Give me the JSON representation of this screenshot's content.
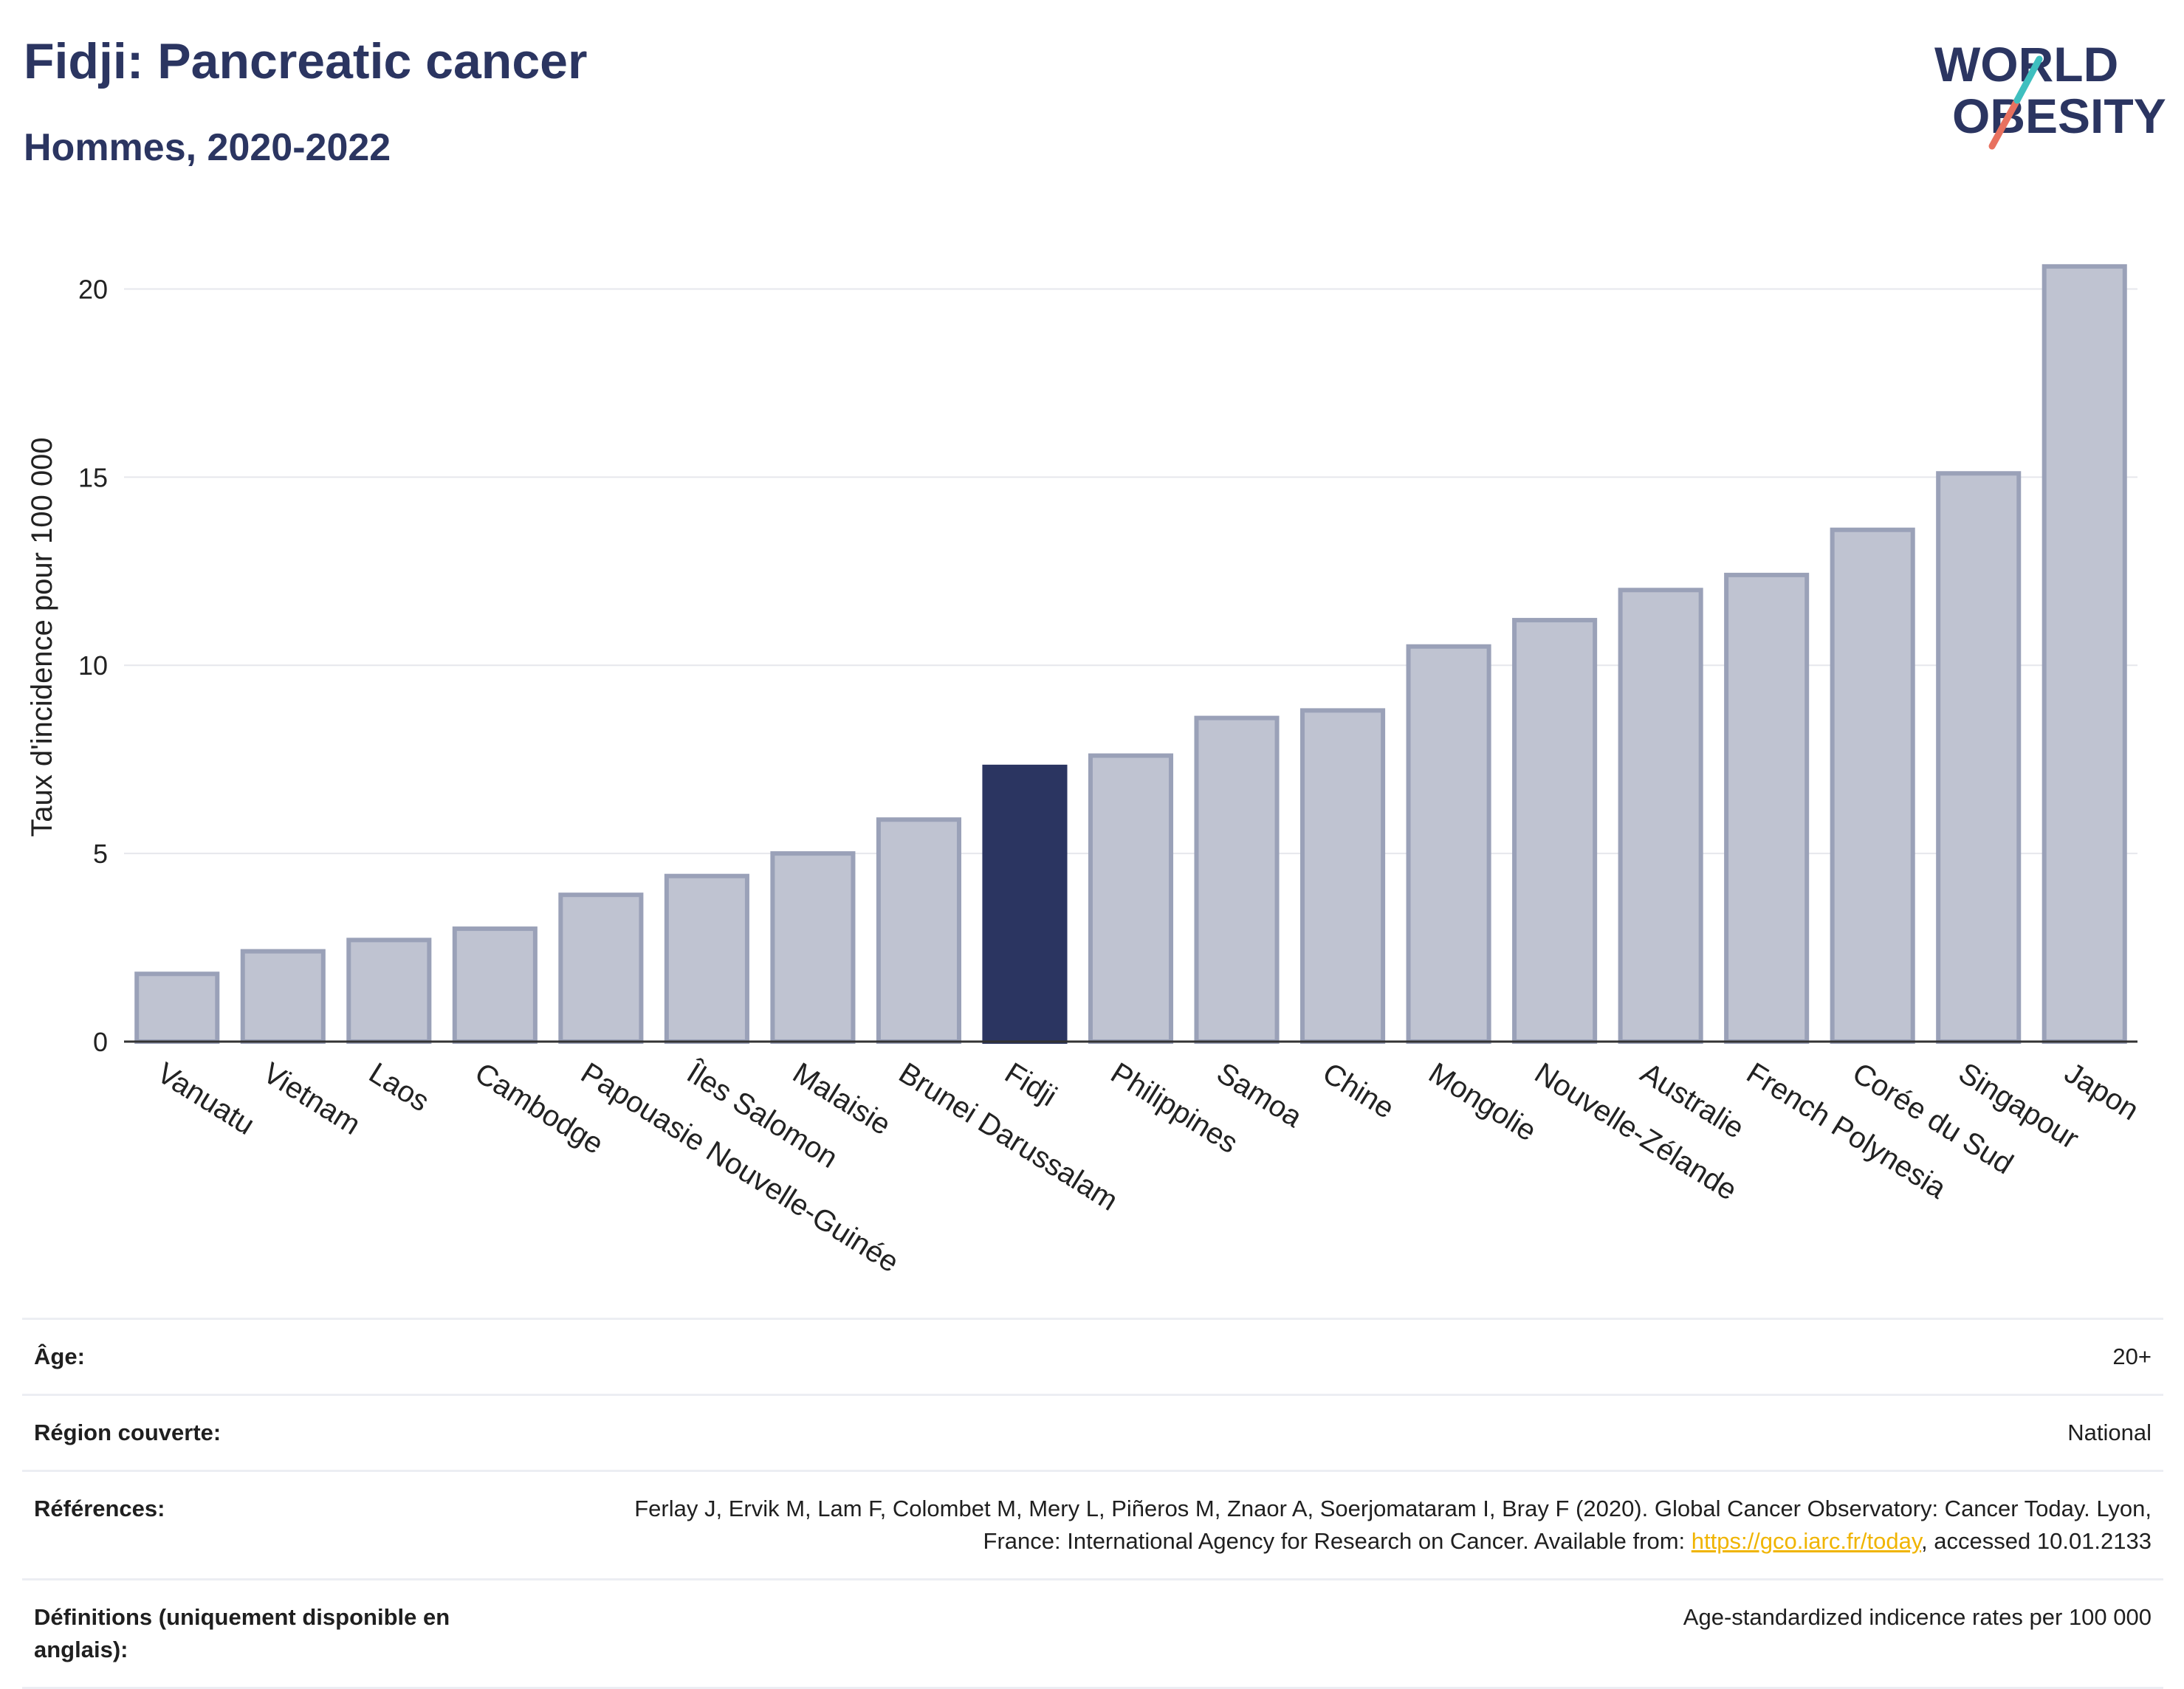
{
  "header": {
    "title": "Fidji: Pancreatic cancer",
    "subtitle": "Hommes, 2020-2022",
    "logo_line1": "WORLD",
    "logo_line2": "OBESITY"
  },
  "colors": {
    "bar": "#bfc3d1",
    "bar_stroke": "#9aa1b8",
    "highlight": "#2b3561",
    "text_dark": "#2b3561",
    "grid": "#e6e7ec",
    "link": "#f0b400"
  },
  "chart_data": {
    "type": "bar",
    "ylabel": "Taux d'incidence pour 100 000",
    "xlabel": "",
    "ylim": [
      0,
      21.5
    ],
    "yticks": [
      0,
      5,
      10,
      15,
      20
    ],
    "highlight": "Fidji",
    "categories": [
      "Vanuatu",
      "Vietnam",
      "Laos",
      "Cambodge",
      "Papouasie Nouvelle-Guinée",
      "Îles Salomon",
      "Malaisie",
      "Brunei Darussalam",
      "Fidji",
      "Philippines",
      "Samoa",
      "Chine",
      "Mongolie",
      "Nouvelle-Zélande",
      "Australie",
      "French Polynesia",
      "Corée du Sud",
      "Singapour",
      "Japon"
    ],
    "values": [
      1.8,
      2.4,
      2.7,
      3.0,
      3.9,
      4.4,
      5.0,
      5.9,
      7.3,
      7.6,
      8.6,
      8.8,
      10.5,
      11.2,
      12.0,
      12.4,
      13.6,
      15.1,
      20.6
    ]
  },
  "info": {
    "age_label": "Âge:",
    "age_value": "20+",
    "region_label": "Région couverte:",
    "region_value": "National",
    "refs_label": "Références:",
    "refs_text": "Ferlay J, Ervik M, Lam F, Colombet M, Mery L, Piñeros M, Znaor A, Soerjomataram I, Bray F (2020). Global Cancer Observatory: Cancer Today. Lyon, France: International Agency for Research on Cancer. Available from: ",
    "refs_link": "https://gco.iarc.fr/today",
    "refs_suffix": ", accessed 10.01.2133",
    "defs_label": "Définitions (uniquement disponible en anglais):",
    "defs_value": "Age-standardized indicence rates per 100 000"
  }
}
